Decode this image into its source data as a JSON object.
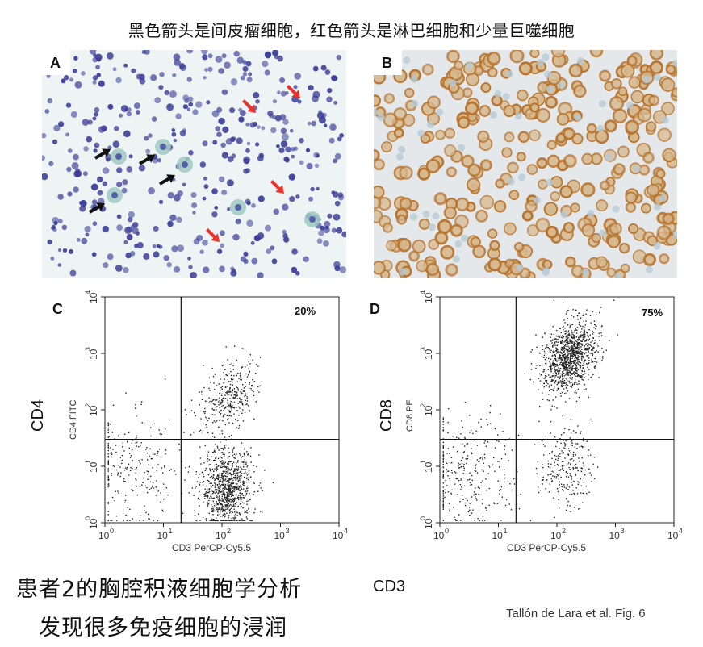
{
  "header": {
    "caption": "黑色箭头是间皮瘤细胞，红色箭头是淋巴细胞和少量巨噬细胞"
  },
  "panels": {
    "A": {
      "label": "A"
    },
    "B": {
      "label": "B"
    }
  },
  "chart_data": [
    {
      "panel": "C",
      "type": "scatter",
      "x_scale": "log",
      "y_scale": "log",
      "xlim": [
        1,
        10000
      ],
      "ylim": [
        1,
        10000
      ],
      "x_ticks": [
        "10",
        "0",
        "10",
        "1",
        "10",
        "2",
        "10",
        "3",
        "10",
        "4"
      ],
      "xlabel": "CD3 PerCP-Cy5.5",
      "ylabel": "CD4 FITC",
      "side_label": "CD4",
      "gate_x": 20,
      "gate_y": 30,
      "quadrant_label": "20%",
      "clusters": [
        {
          "name": "CD3+CD4+",
          "x_center": 130,
          "y_center": 180,
          "points": 350
        },
        {
          "name": "CD3+CD4-",
          "x_center": 120,
          "y_center": 4,
          "points": 900
        },
        {
          "name": "CD3-CD4-",
          "x_center": 3,
          "y_center": 8,
          "points": 250
        }
      ]
    },
    {
      "panel": "D",
      "type": "scatter",
      "x_scale": "log",
      "y_scale": "log",
      "xlim": [
        1,
        10000
      ],
      "ylim": [
        1,
        10000
      ],
      "xlabel": "CD3 PerCP-Cy5.5",
      "ylabel": "CD8 PE",
      "side_label": "CD8",
      "gate_x": 20,
      "gate_y": 30,
      "quadrant_label": "75%",
      "clusters": [
        {
          "name": "CD3+CD8+",
          "x_center": 160,
          "y_center": 900,
          "points": 1100
        },
        {
          "name": "CD3+CD8-",
          "x_center": 140,
          "y_center": 10,
          "points": 250
        },
        {
          "name": "CD3-CD8-",
          "x_center": 3,
          "y_center": 8,
          "points": 300
        }
      ]
    }
  ],
  "footer": {
    "line1": "患者2的胸腔积液细胞学分析",
    "line2": "发现很多免疫细胞的浸润",
    "cd3": "CD3",
    "credit": "Tallón de Lara et al. Fig. 6"
  },
  "colors": {
    "cell_blue": "#3b3f98",
    "cell_brown": "#b8742e",
    "arrow_red": "#e8322e",
    "arrow_black": "#111111"
  }
}
